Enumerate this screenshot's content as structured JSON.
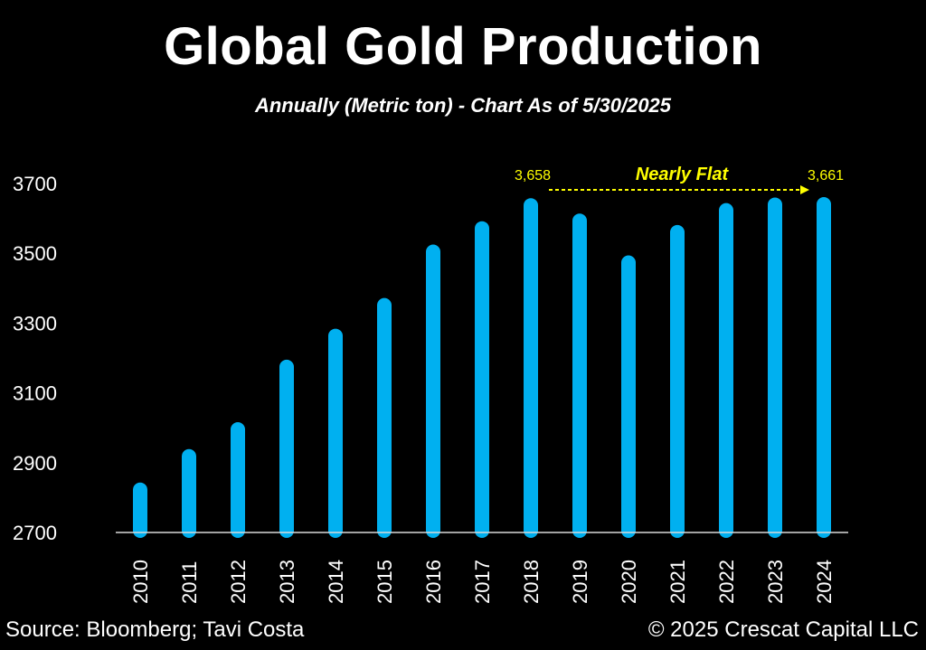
{
  "chart_data": {
    "type": "bar",
    "title": "Global Gold Production",
    "subtitle": "Annually (Metric ton) - Chart As of 5/30/2025",
    "categories": [
      "2010",
      "2011",
      "2012",
      "2013",
      "2014",
      "2015",
      "2016",
      "2017",
      "2018",
      "2019",
      "2020",
      "2021",
      "2022",
      "2023",
      "2024"
    ],
    "values": [
      2843,
      2939,
      3016,
      3195,
      3284,
      3372,
      3525,
      3592,
      3658,
      3614,
      3494,
      3581,
      3644,
      3660,
      3661
    ],
    "ylim": [
      2700,
      3800
    ],
    "yticks": [
      "3700",
      "3500",
      "3300",
      "3100",
      "2900",
      "2700"
    ],
    "xlabel": "",
    "ylabel": "",
    "grid": false,
    "legend": "none",
    "data_labels": [
      {
        "category": "2018",
        "text": "3,658"
      },
      {
        "category": "2024",
        "text": "3,661"
      }
    ],
    "annotation": {
      "text": "Nearly Flat",
      "from": "2018",
      "to": "2024"
    },
    "colors": {
      "bar": "#00b0f0",
      "annotation": "#ffff00",
      "text": "#ffffff",
      "axis": "#d9d9d9",
      "background": "#000000"
    }
  },
  "footer": {
    "source": "Source: Bloomberg; Tavi Costa",
    "copyright": "© 2025 Crescat Capital LLC"
  }
}
